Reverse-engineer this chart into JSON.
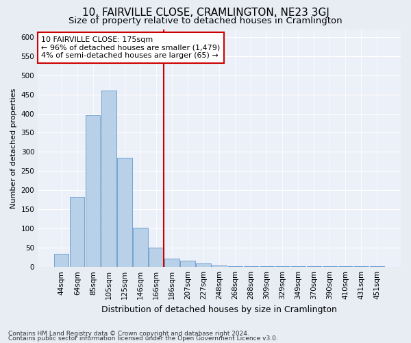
{
  "title": "10, FAIRVILLE CLOSE, CRAMLINGTON, NE23 3GJ",
  "subtitle": "Size of property relative to detached houses in Cramlington",
  "xlabel": "Distribution of detached houses by size in Cramlington",
  "ylabel": "Number of detached properties",
  "footnote1": "Contains HM Land Registry data © Crown copyright and database right 2024.",
  "footnote2": "Contains public sector information licensed under the Open Government Licence v3.0.",
  "categories": [
    "44sqm",
    "64sqm",
    "85sqm",
    "105sqm",
    "125sqm",
    "146sqm",
    "166sqm",
    "186sqm",
    "207sqm",
    "227sqm",
    "248sqm",
    "268sqm",
    "288sqm",
    "309sqm",
    "329sqm",
    "349sqm",
    "370sqm",
    "390sqm",
    "410sqm",
    "431sqm",
    "451sqm"
  ],
  "values": [
    35,
    182,
    395,
    460,
    285,
    103,
    50,
    22,
    16,
    10,
    4,
    2,
    2,
    2,
    2,
    2,
    2,
    2,
    2,
    2,
    2
  ],
  "bar_color": "#b8d0e8",
  "bar_edgecolor": "#6699cc",
  "vline_color": "#cc0000",
  "annotation_text": "10 FAIRVILLE CLOSE: 175sqm\n← 96% of detached houses are smaller (1,479)\n4% of semi-detached houses are larger (65) →",
  "annotation_box_edgecolor": "#cc0000",
  "annotation_box_facecolor": "#ffffff",
  "ylim": [
    0,
    620
  ],
  "yticks": [
    0,
    50,
    100,
    150,
    200,
    250,
    300,
    350,
    400,
    450,
    500,
    550,
    600
  ],
  "bg_color": "#e8edf4",
  "plot_bg_color": "#ecf0f8",
  "title_fontsize": 11,
  "subtitle_fontsize": 9.5,
  "xlabel_fontsize": 9,
  "ylabel_fontsize": 8,
  "tick_fontsize": 7.5,
  "footnote_fontsize": 6.5,
  "annot_fontsize": 8
}
